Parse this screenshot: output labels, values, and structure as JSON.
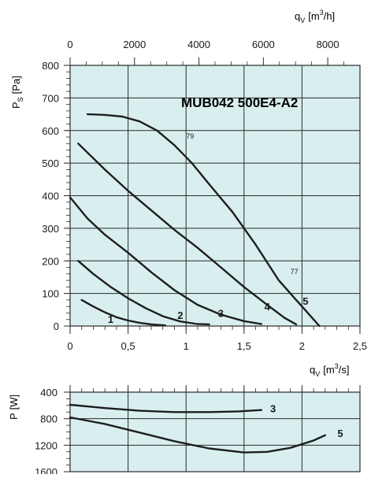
{
  "title": "MUB042 500E4-A2",
  "top_axis": {
    "label_main": "q",
    "label_sub": "V",
    "label_unit": "[m",
    "label_sup": "3",
    "label_end": "/h]"
  },
  "bottom_axis": {
    "label_main": "q",
    "label_sub": "V",
    "label_unit": "[m",
    "label_sup": "3",
    "label_end": "/s]"
  },
  "colors": {
    "plot_bg": "#d9efef",
    "grid": "#2a2a2a",
    "curve": "#1e1e1e",
    "text": "#1a1a1a"
  },
  "chart_data": [
    {
      "type": "line",
      "name": "pressure",
      "ylabel": "P",
      "ylabel_sub": "S",
      "ylabel_unit": "[Pa]",
      "xlim": [
        0,
        2.5
      ],
      "ylim": [
        0,
        800
      ],
      "x_ticks": [
        0,
        0.5,
        1,
        1.5,
        2,
        2.5
      ],
      "x_tick_labels": [
        "0",
        "0,5",
        "1",
        "1,5",
        "2",
        "2,5"
      ],
      "y_ticks": [
        0,
        100,
        200,
        300,
        400,
        500,
        600,
        700,
        800
      ],
      "y_tick_labels": [
        "0",
        "100",
        "200",
        "300",
        "400",
        "500",
        "600",
        "700",
        "800"
      ],
      "top_ticks_m3h": [
        0,
        2000,
        4000,
        6000,
        8000
      ],
      "top_tick_labels": [
        "0",
        "2000",
        "4000",
        "6000",
        "8000"
      ],
      "grid": true,
      "series": [
        {
          "name": "1",
          "x": [
            0.1,
            0.2,
            0.3,
            0.4,
            0.5,
            0.6,
            0.7,
            0.82
          ],
          "y": [
            80,
            60,
            42,
            27,
            17,
            10,
            5,
            2
          ]
        },
        {
          "name": "2",
          "x": [
            0.07,
            0.2,
            0.35,
            0.5,
            0.65,
            0.8,
            0.95,
            1.1,
            1.2
          ],
          "y": [
            200,
            160,
            120,
            85,
            55,
            30,
            14,
            6,
            5
          ]
        },
        {
          "name": "3",
          "x": [
            0.0,
            0.15,
            0.3,
            0.5,
            0.7,
            0.9,
            1.1,
            1.3,
            1.5,
            1.65
          ],
          "y": [
            395,
            330,
            280,
            225,
            165,
            110,
            65,
            35,
            15,
            6
          ]
        },
        {
          "name": "4",
          "x": [
            0.07,
            0.3,
            0.5,
            0.7,
            0.9,
            1.1,
            1.3,
            1.5,
            1.7,
            1.85,
            1.95
          ],
          "y": [
            560,
            480,
            415,
            355,
            295,
            240,
            180,
            120,
            65,
            25,
            5
          ]
        },
        {
          "name": "5",
          "x": [
            0.15,
            0.3,
            0.45,
            0.6,
            0.75,
            0.9,
            1.05,
            1.2,
            1.4,
            1.6,
            1.8,
            1.95,
            2.05,
            2.15
          ],
          "y": [
            650,
            648,
            643,
            628,
            600,
            555,
            500,
            435,
            350,
            250,
            140,
            80,
            40,
            0
          ]
        }
      ],
      "annotations": [
        {
          "text": "79",
          "x": 1.0,
          "y": 575
        },
        {
          "text": "77",
          "x": 1.9,
          "y": 160
        }
      ]
    },
    {
      "type": "line",
      "name": "power",
      "ylabel": "P",
      "ylabel_unit": "[W]",
      "xlim": [
        0,
        2.5
      ],
      "ylim": [
        1600,
        400
      ],
      "y_ticks": [
        400,
        800,
        1200,
        1600
      ],
      "y_tick_labels": [
        "400",
        "800",
        "1200",
        "1600"
      ],
      "grid": true,
      "series": [
        {
          "name": "3",
          "x": [
            0.0,
            0.3,
            0.6,
            0.9,
            1.2,
            1.45,
            1.65
          ],
          "y": [
            590,
            640,
            680,
            700,
            700,
            690,
            670
          ]
        },
        {
          "name": "5",
          "x": [
            0.0,
            0.3,
            0.6,
            0.9,
            1.2,
            1.5,
            1.7,
            1.9,
            2.1,
            2.2
          ],
          "y": [
            780,
            880,
            1010,
            1140,
            1250,
            1310,
            1300,
            1240,
            1130,
            1050
          ]
        }
      ]
    }
  ]
}
